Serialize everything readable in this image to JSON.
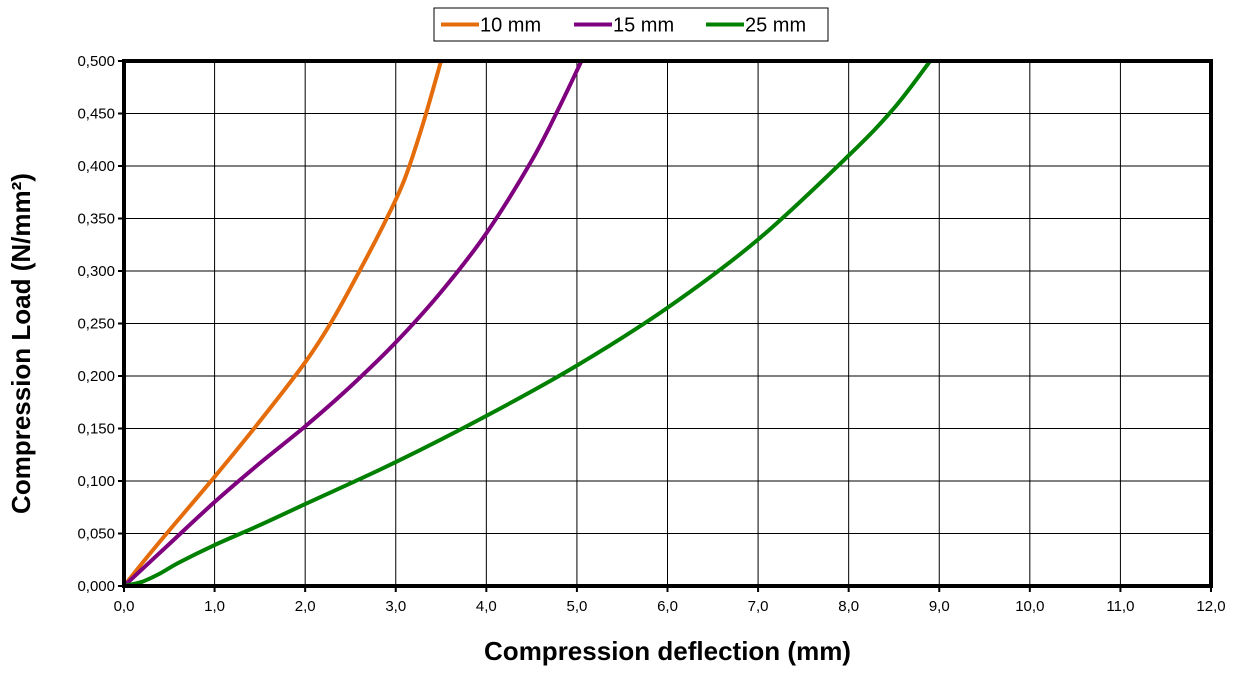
{
  "chart_data": {
    "type": "line",
    "xlabel": "Compression deflection (mm)",
    "ylabel": "Compression Load (N/mm²)",
    "xlim": [
      0,
      12
    ],
    "ylim": [
      0,
      0.5
    ],
    "x_ticks": [
      "0,0",
      "1,0",
      "2,0",
      "3,0",
      "4,0",
      "5,0",
      "6,0",
      "7,0",
      "8,0",
      "9,0",
      "10,0",
      "11,0",
      "12,0"
    ],
    "y_ticks": [
      "0,000",
      "0,050",
      "0,100",
      "0,150",
      "0,200",
      "0,250",
      "0,300",
      "0,350",
      "0,400",
      "0,450",
      "0,500"
    ],
    "grid": true,
    "legend_position": "top-center",
    "series": [
      {
        "name": "10 mm",
        "color": "#E46C0A",
        "points": [
          [
            0,
            0
          ],
          [
            0.25,
            0.027
          ],
          [
            0.5,
            0.053
          ],
          [
            1.0,
            0.104
          ],
          [
            1.5,
            0.157
          ],
          [
            2.0,
            0.213
          ],
          [
            2.3,
            0.253
          ],
          [
            2.6,
            0.3
          ],
          [
            2.9,
            0.35
          ],
          [
            3.1,
            0.388
          ],
          [
            3.3,
            0.44
          ],
          [
            3.5,
            0.5
          ]
        ]
      },
      {
        "name": "15 mm",
        "color": "#7F007F",
        "points": [
          [
            0,
            0
          ],
          [
            0.5,
            0.04
          ],
          [
            1.0,
            0.08
          ],
          [
            1.5,
            0.117
          ],
          [
            2.0,
            0.152
          ],
          [
            2.5,
            0.19
          ],
          [
            3.0,
            0.232
          ],
          [
            3.5,
            0.28
          ],
          [
            4.0,
            0.336
          ],
          [
            4.5,
            0.405
          ],
          [
            4.8,
            0.455
          ],
          [
            5.05,
            0.5
          ]
        ]
      },
      {
        "name": "25 mm",
        "color": "#008000",
        "points": [
          [
            0,
            0
          ],
          [
            0.2,
            0.004
          ],
          [
            0.4,
            0.012
          ],
          [
            0.6,
            0.022
          ],
          [
            1.0,
            0.039
          ],
          [
            1.5,
            0.058
          ],
          [
            2.0,
            0.078
          ],
          [
            3.0,
            0.118
          ],
          [
            4.0,
            0.162
          ],
          [
            5.0,
            0.21
          ],
          [
            6.0,
            0.265
          ],
          [
            7.0,
            0.33
          ],
          [
            8.0,
            0.41
          ],
          [
            8.5,
            0.455
          ],
          [
            8.9,
            0.5
          ]
        ]
      }
    ]
  }
}
